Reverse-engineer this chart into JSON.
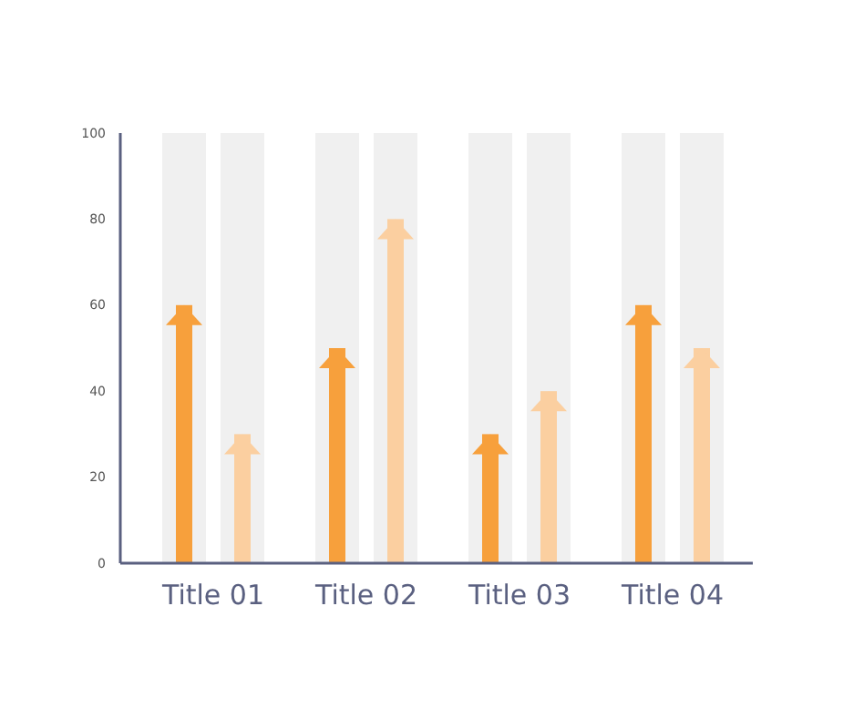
{
  "chart_data": {
    "type": "bar",
    "categories": [
      "Title 01",
      "Title 02",
      "Title 03",
      "Title 04"
    ],
    "series": [
      {
        "color": "#f0f0f0",
        "values": [
          100,
          100,
          100,
          100
        ]
      },
      {
        "color": "#f7a03c",
        "values": [
          60,
          50,
          30,
          60
        ]
      },
      {
        "color": "#f0f0f0",
        "values": [
          100,
          100,
          100,
          100
        ]
      },
      {
        "color": "#fbcfa0",
        "values": [
          30,
          80,
          40,
          50
        ]
      }
    ],
    "ylim": [
      0,
      100
    ],
    "yticks": [
      0,
      20,
      40,
      60,
      80,
      100
    ],
    "grid": false
  }
}
